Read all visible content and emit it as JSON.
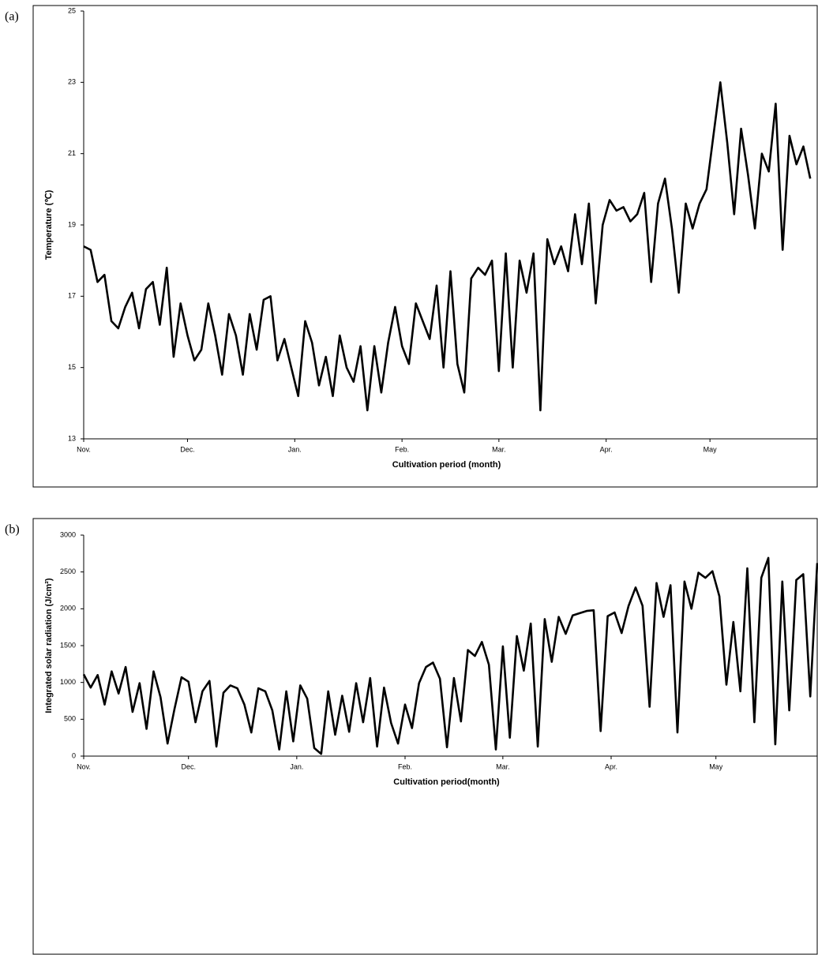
{
  "chart_data": [
    {
      "type": "line",
      "panel_label": "(a)",
      "xlabel": "Cultivation period (month)",
      "ylabel": "Temperature (℃)",
      "color": "#000000",
      "xlim": [
        0,
        212
      ],
      "ylim": [
        13,
        25
      ],
      "yticks": [
        13,
        15,
        17,
        19,
        21,
        23,
        25
      ],
      "xticks": [
        {
          "value": 0,
          "label": "Nov."
        },
        {
          "value": 30,
          "label": "Dec."
        },
        {
          "value": 61,
          "label": "Jan."
        },
        {
          "value": 92,
          "label": "Feb."
        },
        {
          "value": 120,
          "label": "Mar."
        },
        {
          "value": 151,
          "label": "Apr."
        },
        {
          "value": 181,
          "label": "May"
        }
      ],
      "x": [
        0,
        2,
        4,
        6,
        8,
        10,
        12,
        14,
        16,
        18,
        20,
        22,
        24,
        26,
        28,
        30,
        32,
        34,
        36,
        38,
        40,
        42,
        44,
        46,
        48,
        50,
        52,
        54,
        56,
        58,
        60,
        62,
        64,
        66,
        68,
        70,
        72,
        74,
        76,
        78,
        80,
        82,
        84,
        86,
        88,
        90,
        92,
        94,
        96,
        98,
        100,
        102,
        104,
        106,
        108,
        110,
        112,
        114,
        116,
        118,
        120,
        122,
        124,
        126,
        128,
        130,
        132,
        134,
        136,
        138,
        140,
        142,
        144,
        146,
        148,
        150,
        152,
        154,
        156,
        158,
        160,
        162,
        164,
        166,
        168,
        170,
        172,
        174,
        176,
        178,
        180,
        182,
        184,
        186,
        188,
        190,
        192,
        194,
        196,
        198,
        200,
        202,
        204,
        206,
        208,
        210
      ],
      "values": [
        18.4,
        18.3,
        17.4,
        17.6,
        16.3,
        16.1,
        16.7,
        17.1,
        16.1,
        17.2,
        17.4,
        16.2,
        17.8,
        15.3,
        16.8,
        15.9,
        15.2,
        15.5,
        16.8,
        15.9,
        14.8,
        16.5,
        15.9,
        14.8,
        16.5,
        15.5,
        16.9,
        17.0,
        15.2,
        15.8,
        15.0,
        14.2,
        16.3,
        15.7,
        14.5,
        15.3,
        14.2,
        15.9,
        15.0,
        14.6,
        15.6,
        13.8,
        15.6,
        14.3,
        15.7,
        16.7,
        15.6,
        15.1,
        16.8,
        16.3,
        15.8,
        17.3,
        15.0,
        17.7,
        15.1,
        14.3,
        17.5,
        17.8,
        17.6,
        18.0,
        14.9,
        18.2,
        15.0,
        18.0,
        17.1,
        18.2,
        13.8,
        18.6,
        17.9,
        18.4,
        17.7,
        19.3,
        17.9,
        19.6,
        16.8,
        19.0,
        19.7,
        19.4,
        19.5,
        19.1,
        19.3,
        19.9,
        17.4,
        19.6,
        20.3,
        18.9,
        17.1,
        19.6,
        18.9,
        19.6,
        20.0,
        21.5,
        23.0,
        21.3,
        19.3,
        21.7,
        20.4,
        18.9,
        21.0,
        20.5,
        22.4,
        18.3,
        21.5,
        20.7,
        21.2,
        20.3
      ]
    },
    {
      "type": "line",
      "panel_label": "(b)",
      "xlabel": "Cultivation period(month)",
      "ylabel": "Integrated solar radiation (J/cm²)",
      "color": "#000000",
      "xlim": [
        0,
        210
      ],
      "ylim": [
        0,
        3000
      ],
      "yticks": [
        0,
        500,
        1000,
        1500,
        2000,
        2500,
        3000
      ],
      "xticks": [
        {
          "value": 0,
          "label": "Nov."
        },
        {
          "value": 30,
          "label": "Dec."
        },
        {
          "value": 61,
          "label": "Jan."
        },
        {
          "value": 92,
          "label": "Feb."
        },
        {
          "value": 120,
          "label": "Mar."
        },
        {
          "value": 151,
          "label": "Apr."
        },
        {
          "value": 181,
          "label": "May"
        }
      ],
      "x": [
        0,
        2,
        4,
        6,
        8,
        10,
        12,
        14,
        16,
        18,
        20,
        22,
        24,
        26,
        28,
        30,
        32,
        34,
        36,
        38,
        40,
        42,
        44,
        46,
        48,
        50,
        52,
        54,
        56,
        58,
        60,
        62,
        64,
        66,
        68,
        70,
        72,
        74,
        76,
        78,
        80,
        82,
        84,
        86,
        88,
        90,
        92,
        94,
        96,
        98,
        100,
        102,
        104,
        106,
        108,
        110,
        112,
        114,
        116,
        118,
        120,
        122,
        124,
        126,
        128,
        130,
        132,
        134,
        136,
        138,
        140,
        142,
        144,
        146,
        148,
        150,
        152,
        154,
        156,
        158,
        160,
        162,
        164,
        166,
        168,
        170,
        172,
        174,
        176,
        178,
        180,
        182,
        184,
        186,
        188,
        190,
        192,
        194,
        196,
        198,
        200,
        202,
        204,
        206,
        208,
        210
      ],
      "values": [
        1110,
        930,
        1100,
        700,
        1150,
        850,
        1210,
        600,
        990,
        370,
        1150,
        800,
        170,
        640,
        1070,
        1010,
        460,
        880,
        1020,
        130,
        860,
        960,
        920,
        700,
        320,
        920,
        880,
        620,
        90,
        880,
        200,
        960,
        780,
        110,
        30,
        880,
        290,
        820,
        330,
        990,
        460,
        1060,
        130,
        930,
        450,
        170,
        700,
        380,
        990,
        1210,
        1270,
        1050,
        120,
        1060,
        470,
        1440,
        1360,
        1550,
        1240,
        90,
        1490,
        250,
        1630,
        1160,
        1800,
        130,
        1860,
        1280,
        1890,
        1660,
        1910,
        1940,
        1970,
        1980,
        340,
        1900,
        1950,
        1670,
        2040,
        2290,
        2040,
        670,
        2350,
        1890,
        2320,
        320,
        2370,
        2000,
        2490,
        2420,
        2510,
        2170,
        970,
        1820,
        880,
        2550,
        460,
        2420,
        2690,
        160,
        2370,
        620,
        2390,
        2470,
        810,
        2620
      ]
    }
  ]
}
